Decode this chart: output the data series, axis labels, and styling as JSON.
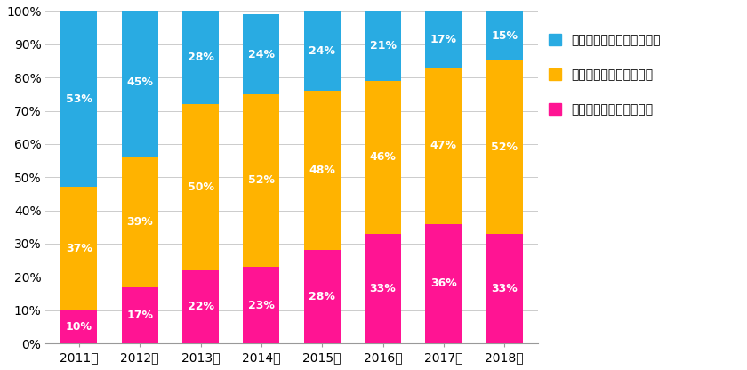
{
  "years": [
    "2011年",
    "2012年",
    "2013年",
    "2014年",
    "2015年",
    "2016年",
    "2017年",
    "2018年"
  ],
  "good": [
    10,
    17,
    22,
    23,
    28,
    33,
    36,
    33
  ],
  "same": [
    37,
    39,
    50,
    52,
    48,
    46,
    47,
    52
  ],
  "strict": [
    53,
    45,
    28,
    24,
    24,
    21,
    17,
    15
  ],
  "color_good": "#FF1493",
  "color_same": "#FFB300",
  "color_strict": "#29ABE2",
  "legend_strict": "以前より厳しくなっている",
  "legend_same": "以前とあまり変わらない",
  "legend_good": "以前より良くなっている",
  "ylim": [
    0,
    100
  ],
  "yticks": [
    0,
    10,
    20,
    30,
    40,
    50,
    60,
    70,
    80,
    90,
    100
  ],
  "ytick_labels": [
    "0%",
    "10%",
    "20%",
    "30%",
    "40%",
    "50%",
    "60%",
    "70%",
    "80%",
    "90%",
    "100%"
  ],
  "background_color": "#ffffff",
  "label_fontsize": 9,
  "legend_fontsize": 10,
  "tick_fontsize": 10,
  "bar_width": 0.6
}
